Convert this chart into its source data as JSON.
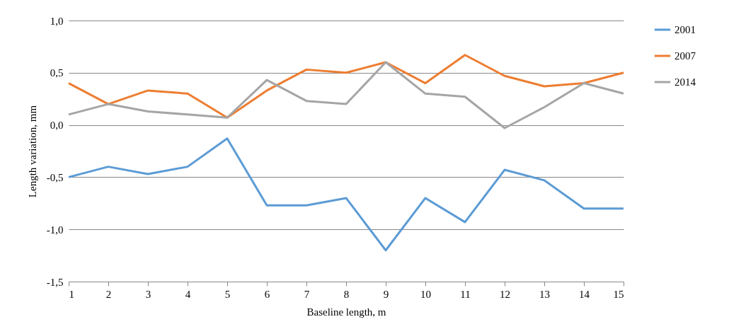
{
  "chart_data": {
    "type": "line",
    "xlabel": "Baseline length, m",
    "ylabel": "Length variation, mm",
    "x": [
      1,
      2,
      3,
      4,
      5,
      6,
      7,
      8,
      9,
      10,
      11,
      12,
      13,
      14,
      15
    ],
    "series": [
      {
        "name": "2001",
        "color": "#5b9bd5",
        "values": [
          -0.5,
          -0.4,
          -0.47,
          -0.4,
          -0.13,
          -0.77,
          -0.77,
          -0.7,
          -1.2,
          -0.7,
          -0.93,
          -0.43,
          -0.53,
          -0.8,
          -0.8
        ]
      },
      {
        "name": "2007",
        "color": "#ed7d31",
        "values": [
          0.4,
          0.2,
          0.33,
          0.3,
          0.07,
          0.33,
          0.53,
          0.5,
          0.6,
          0.4,
          0.67,
          0.47,
          0.37,
          0.4,
          0.5
        ]
      },
      {
        "name": "2014",
        "color": "#a5a5a5",
        "values": [
          0.1,
          0.2,
          0.13,
          0.1,
          0.07,
          0.43,
          0.23,
          0.2,
          0.6,
          0.3,
          0.27,
          -0.03,
          0.17,
          0.4,
          0.3
        ]
      }
    ],
    "xlim": [
      1,
      15
    ],
    "xticks": [
      1,
      2,
      3,
      4,
      5,
      6,
      7,
      8,
      9,
      10,
      11,
      12,
      13,
      14,
      15
    ],
    "ylim": [
      -1.5,
      1.0
    ],
    "yticks": [
      {
        "value": -1.5,
        "label": "-1,5"
      },
      {
        "value": -1.0,
        "label": "-1,0"
      },
      {
        "value": -0.5,
        "label": "-0,5"
      },
      {
        "value": 0.0,
        "label": "0,0"
      },
      {
        "value": 0.5,
        "label": "0,5"
      },
      {
        "value": 1.0,
        "label": "1,0"
      }
    ],
    "grid": "y",
    "legend": "right",
    "marker": "none",
    "line_style": "solid"
  }
}
